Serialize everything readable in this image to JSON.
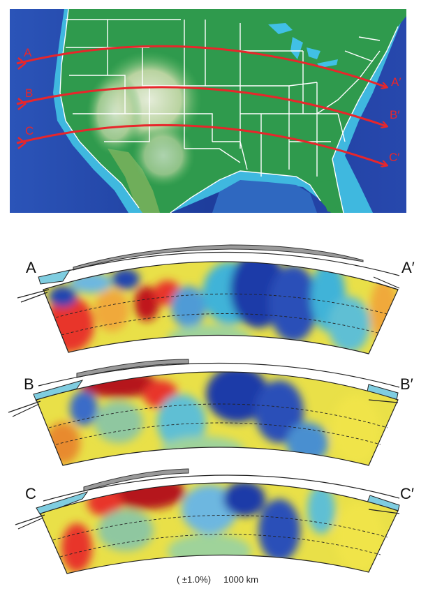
{
  "map": {
    "profiles": [
      {
        "start_label": "A",
        "end_label": "A′"
      },
      {
        "start_label": "B",
        "end_label": "B′"
      },
      {
        "start_label": "C",
        "end_label": "C′"
      }
    ],
    "colors": {
      "ocean_deep": "#1f3d9e",
      "ocean_shelf": "#41c0e6",
      "land": "#2e9e4f",
      "mountains": "#c9d8b8",
      "borders": "#ffffff",
      "profile_lines": "#e8262b"
    }
  },
  "sections": [
    {
      "name": "A",
      "start_label": "A",
      "end_label": "A′"
    },
    {
      "name": "B",
      "start_label": "B",
      "end_label": "B′"
    },
    {
      "name": "C",
      "start_label": "C",
      "end_label": "C′"
    }
  ],
  "colorscale": {
    "fast": "#1e3aa8",
    "neutral": "#f2ea3a",
    "slow": "#c0141a"
  },
  "footer": {
    "range_label": "( ±1.0%)",
    "scale_label": "1000 km"
  }
}
